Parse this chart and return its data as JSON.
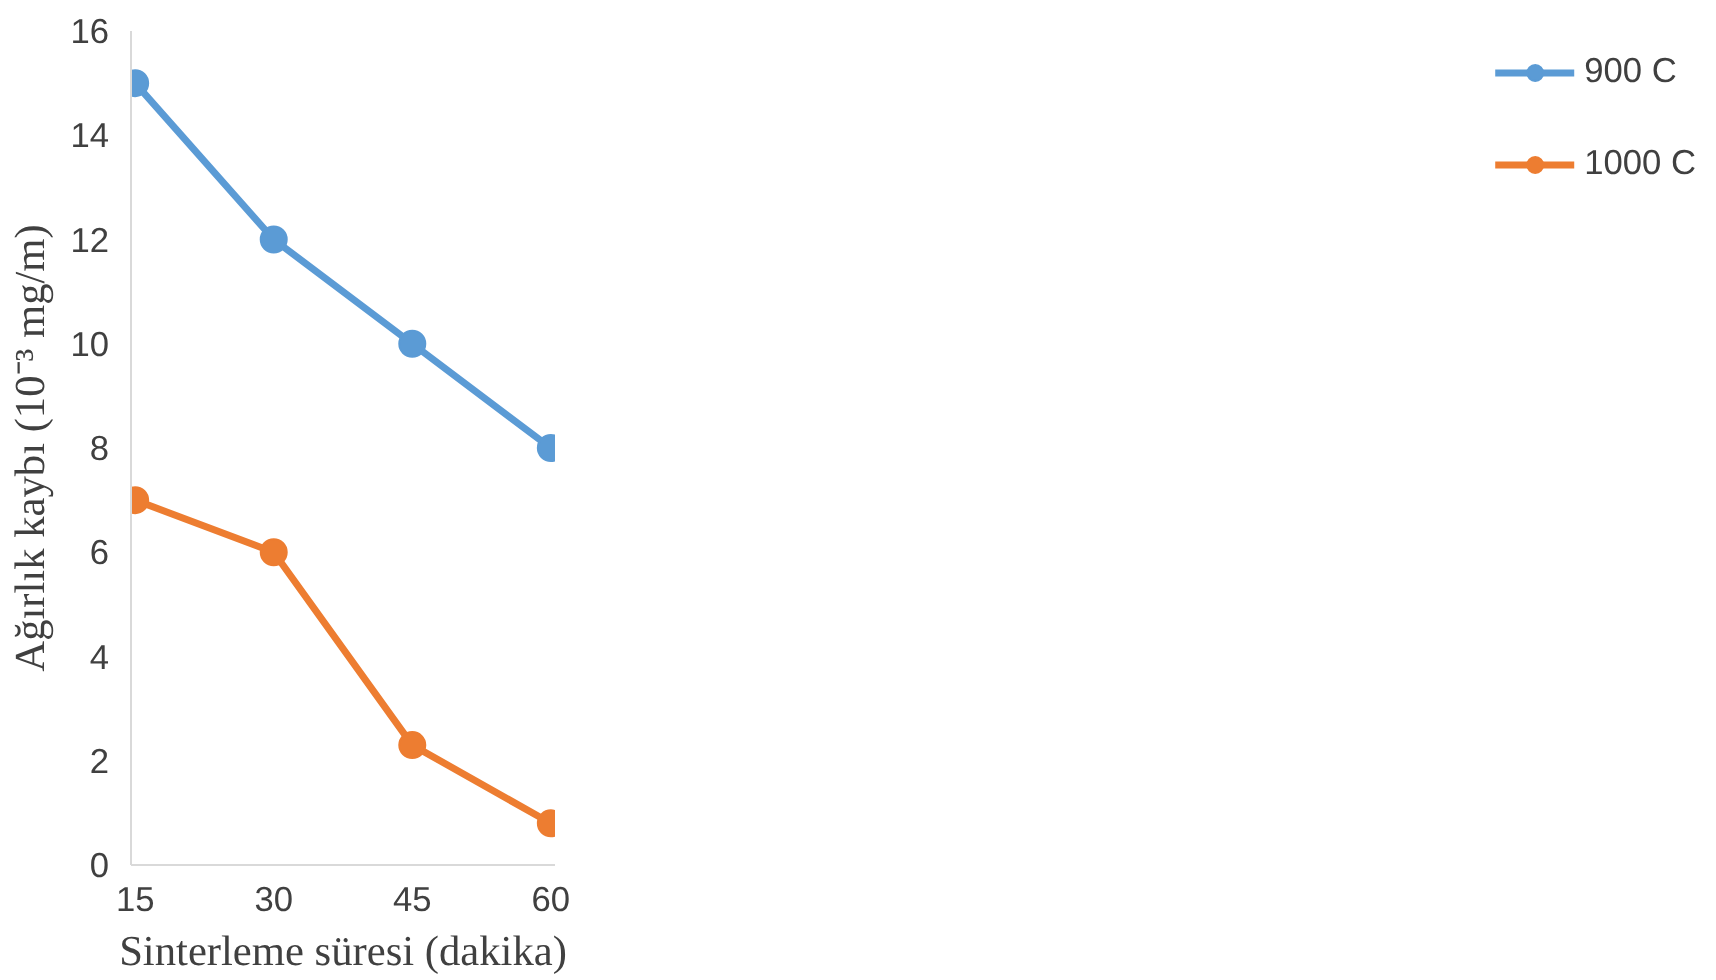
{
  "chart_data": {
    "type": "line",
    "xlabel": "Sinterleme süresi (dakika)",
    "ylabel": "Ağırlık kaybı (10⁻³ mg/m)",
    "categories": [
      "15",
      "30",
      "45",
      "60"
    ],
    "ylim": [
      0,
      16
    ],
    "yticks": [
      0,
      2,
      4,
      6,
      8,
      10,
      12,
      14,
      16
    ],
    "series": [
      {
        "name": "900 C",
        "color": "#5b9bd5",
        "values": [
          15,
          12,
          10,
          8
        ]
      },
      {
        "name": "1000 C",
        "color": "#ed7d31",
        "values": [
          7,
          6,
          2.3,
          0.8
        ]
      }
    ],
    "marker": "circle",
    "line_style": "solid",
    "grid": false,
    "legend": "right"
  }
}
